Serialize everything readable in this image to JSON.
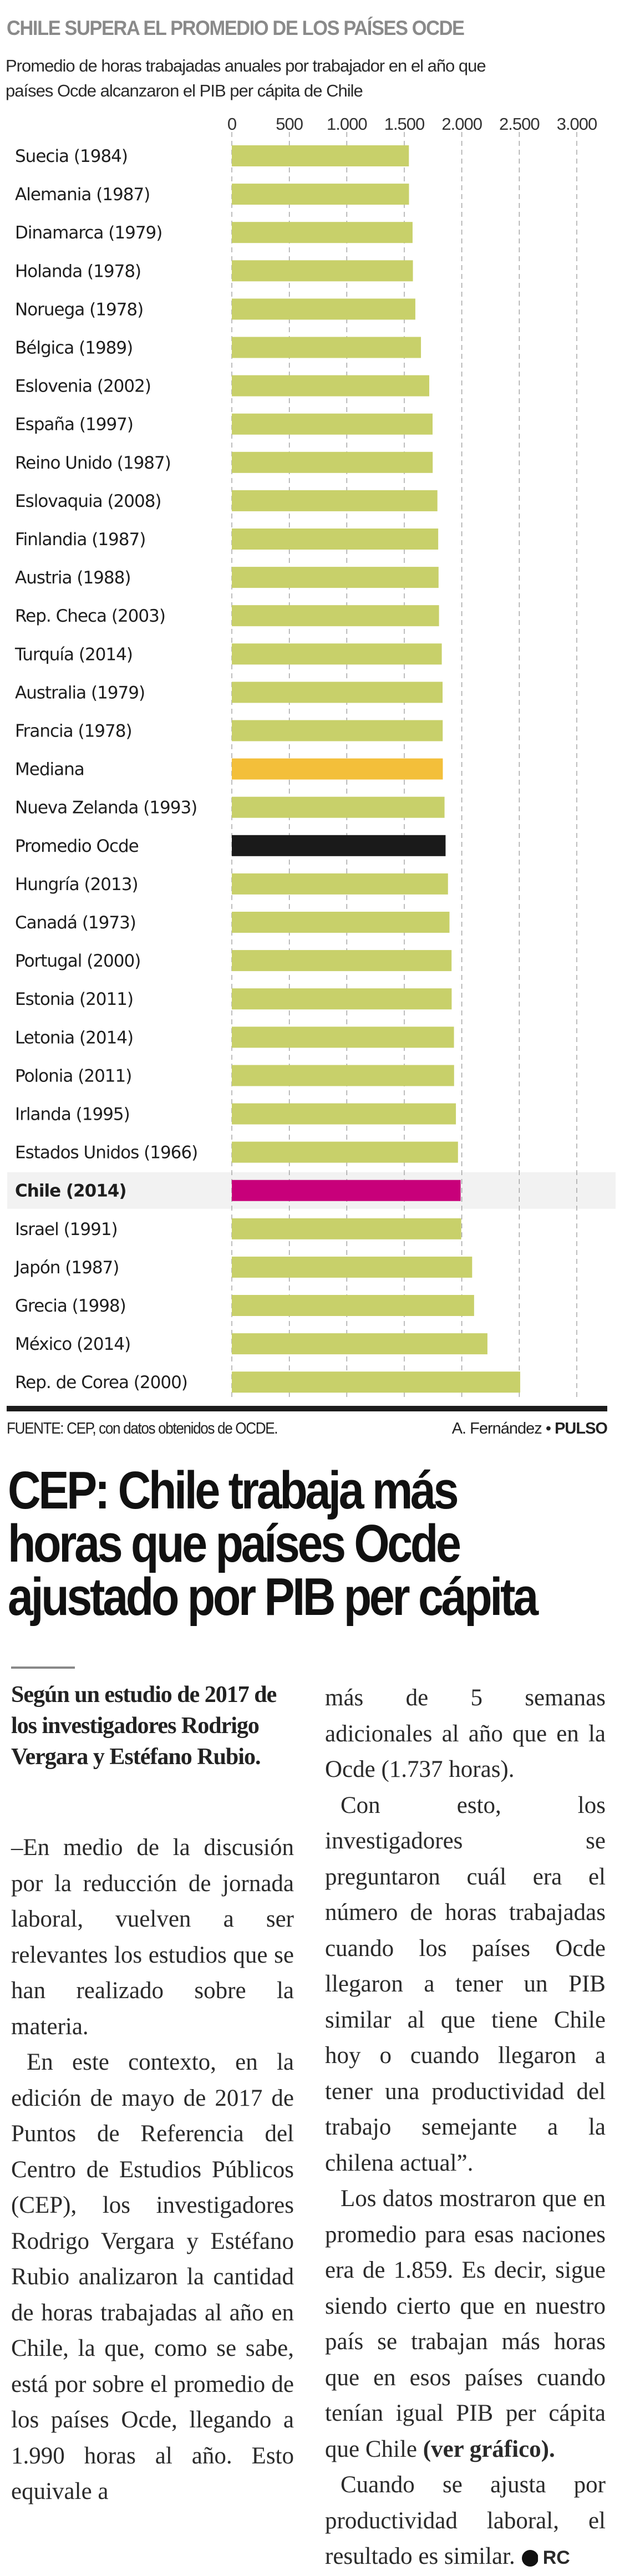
{
  "chart_data": {
    "type": "bar",
    "orientation": "horizontal",
    "title": "CHILE SUPERA EL PROMEDIO DE LOS PAÍSES OCDE",
    "subtitle_lines": [
      "Promedio de horas trabajadas anuales por trabajador en el año que",
      "países Ocde alcanzaron el PIB per cápita de Chile"
    ],
    "xlabel": "",
    "ylabel": "",
    "xlim": [
      0,
      3000
    ],
    "xticks": [
      0,
      500,
      1000,
      1500,
      2000,
      2500,
      3000
    ],
    "xtick_labels": [
      "0",
      "500",
      "1.000",
      "1.500",
      "2.000",
      "2.500",
      "3.000"
    ],
    "grid": "vertical dashed",
    "categories": [
      "Suecia (1984)",
      "Alemania (1987)",
      "Dinamarca (1979)",
      "Holanda (1978)",
      "Noruega (1978)",
      "Bélgica (1989)",
      "Eslovenia (2002)",
      "España (1997)",
      "Reino Unido (1987)",
      "Eslovaquia (2008)",
      "Finlandia (1987)",
      "Austria (1988)",
      "Rep. Checa (2003)",
      "Turquía (2014)",
      "Australia (1979)",
      "Francia (1978)",
      "Mediana",
      "Nueva Zelanda (1993)",
      "Promedio Ocde",
      "Hungría (2013)",
      "Canadá (1973)",
      "Portugal (2000)",
      "Estonia (2011)",
      "Letonia (2014)",
      "Polonia (2011)",
      "Irlanda (1995)",
      "Estados Unidos (1966)",
      "Chile (2014)",
      "Israel (1991)",
      "Japón (1987)",
      "Grecia (1998)",
      "México (2014)",
      "Rep. de Corea (2000)"
    ],
    "values": [
      1540,
      1541,
      1572,
      1575,
      1596,
      1645,
      1717,
      1746,
      1747,
      1788,
      1795,
      1798,
      1802,
      1826,
      1833,
      1834,
      1835,
      1850,
      1859,
      1880,
      1893,
      1911,
      1912,
      1932,
      1933,
      1949,
      1967,
      1990,
      1995,
      2090,
      2107,
      2223,
      2508
    ],
    "highlight": {
      "Mediana": "median",
      "Promedio Ocde": "average",
      "Chile (2014)": "chile"
    },
    "colors": {
      "default": "#c8d06a",
      "median": "#f3bf3a",
      "average": "#1a1a1a",
      "chile": "#c8007a",
      "chile_row_band": "#f2f2f2",
      "title": "#8a8a8a"
    },
    "source": "FUENTE: CEP, con datos obtenidos de OCDE.",
    "credit_author": "A. Fernández",
    "credit_separator": "•",
    "credit_outlet": "PULSO"
  },
  "article": {
    "headline_lines": [
      "CEP: Chile trabaja más",
      "horas que países Ocde",
      "ajustado por PIB per cápita"
    ],
    "lead": "Según un estudio de 2017 de los investigadores Rodrigo Vergara y Estéfano Rubio.",
    "left_column": [
      {
        "text": "–En medio de la discusión por la reducción de jornada laboral, vuelven a ser relevantes los estudios que se han realizado sobre la materia.",
        "indent": false
      },
      {
        "text": "En este contexto, en la edición de mayo de 2017 de Puntos de Referencia del Centro de Estudios Públicos (CEP), los investigadores Rodrigo Vergara y Estéfano Rubio analizaron la cantidad de horas trabajadas al año en Chile, la que, como se sabe, está por sobre el promedio de los países Ocde, llegando a 1.990 horas al año. Esto equivale a",
        "indent": true
      }
    ],
    "right_column": [
      {
        "text": "más de 5 semanas adicionales al año que en la Ocde (1.737 horas).",
        "indent": false
      },
      {
        "text": "Con esto, los investigadores se preguntaron cuál era el número de horas trabajadas cuando los países Ocde llegaron a tener un PIB similar al que tiene Chile hoy o cuando llegaron a tener una productividad del trabajo semejante a la chilena actual”.",
        "indent": true
      },
      {
        "text": "Los datos mostraron que en promedio para esas naciones era de 1.859. Es decir, sigue siendo cierto que en nuestro país se trabajan más horas que en esos países cuando tenían igual PIB per cápita que Chile",
        "indent": true,
        "bold_suffix": "(ver gráfico)."
      },
      {
        "text": "Cuando se ajusta por productividad laboral, el resultado es similar.",
        "indent": true
      }
    ],
    "signature_icon": "P",
    "signature_initials": "RC"
  }
}
